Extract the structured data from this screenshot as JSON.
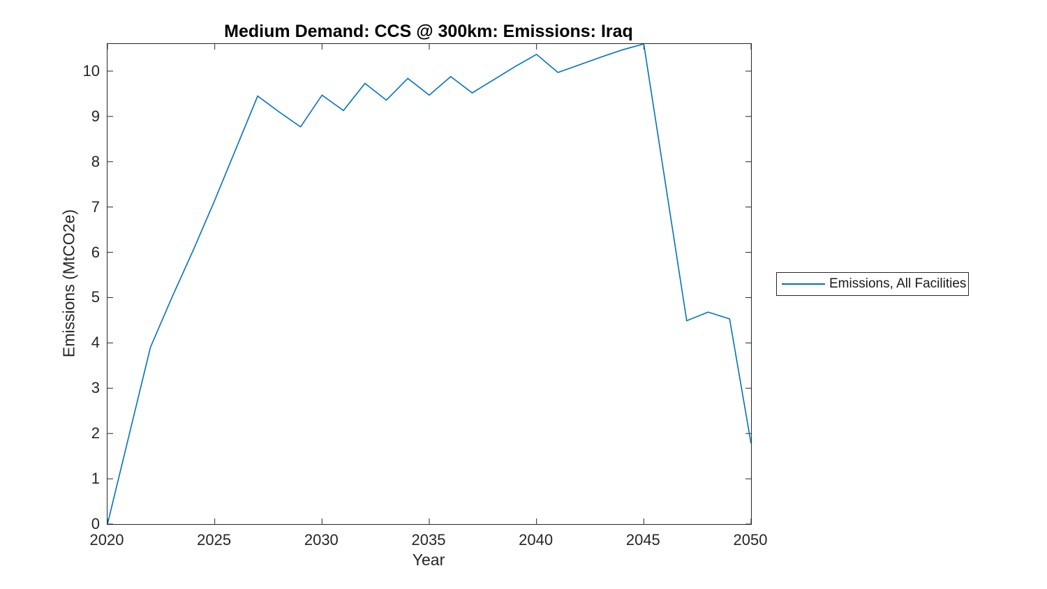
{
  "figure": {
    "title": "Medium Demand: CCS @ 300km: Emissions: Iraq",
    "xlabel": "Year",
    "ylabel": "Emissions (MtCO2e)"
  },
  "colors": {
    "line": "#0072BD",
    "axis": "#262626",
    "tick_text": "#262626",
    "title_text": "#000000",
    "background": "#ffffff"
  },
  "legend": {
    "position": "right-outside",
    "entries": [
      {
        "label": "Emissions, All Facilities",
        "color": "#0072BD"
      }
    ]
  },
  "chart_data": {
    "type": "line",
    "title": "Medium Demand: CCS @ 300km: Emissions: Iraq",
    "xlabel": "Year",
    "ylabel": "Emissions (MtCO2e)",
    "xlim": [
      2020,
      2050
    ],
    "ylim": [
      0,
      10.6
    ],
    "xticks": [
      2020,
      2025,
      2030,
      2035,
      2040,
      2045,
      2050
    ],
    "yticks": [
      0,
      1,
      2,
      3,
      4,
      5,
      6,
      7,
      8,
      9,
      10
    ],
    "grid": false,
    "legend_position": "right-outside",
    "series": [
      {
        "name": "Emissions, All Facilities",
        "color": "#0072BD",
        "x": [
          2020,
          2021,
          2022,
          2023,
          2024,
          2025,
          2026,
          2027,
          2028,
          2029,
          2030,
          2031,
          2032,
          2033,
          2034,
          2035,
          2036,
          2037,
          2038,
          2039,
          2040,
          2041,
          2042,
          2043,
          2044,
          2045,
          2046,
          2047,
          2048,
          2049,
          2050
        ],
        "y": [
          0,
          1.95,
          3.9,
          5.0,
          6.05,
          7.15,
          8.3,
          9.45,
          9.1,
          8.77,
          9.47,
          9.13,
          9.73,
          9.36,
          9.84,
          9.47,
          9.88,
          9.52,
          9.81,
          10.1,
          10.37,
          9.97,
          10.14,
          10.31,
          10.47,
          10.6,
          7.55,
          4.49,
          4.68,
          4.53,
          1.78
        ]
      }
    ]
  }
}
